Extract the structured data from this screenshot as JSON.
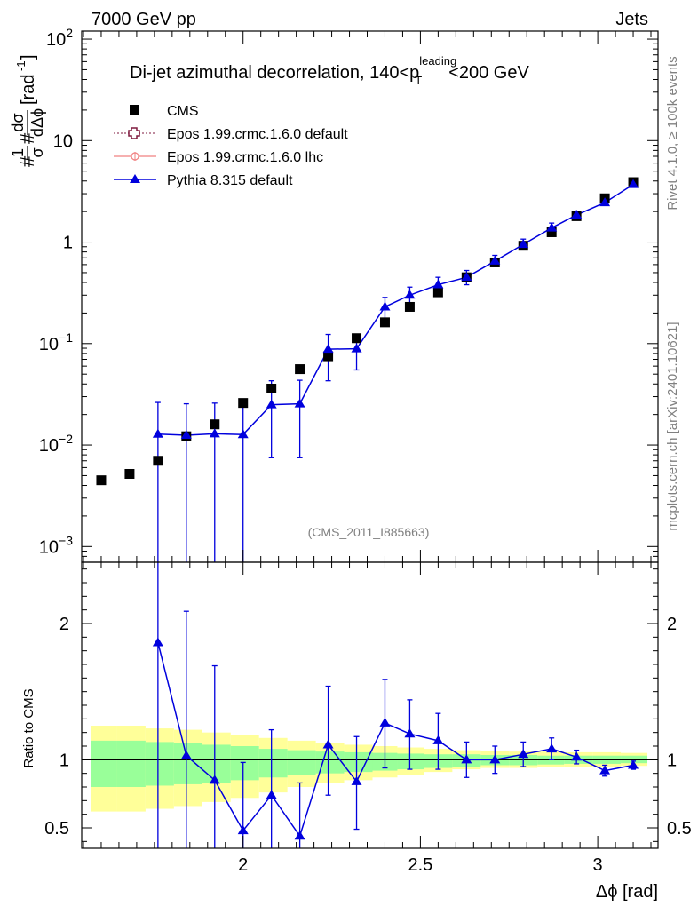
{
  "header": {
    "left": "7000 GeV pp",
    "right": "Jets"
  },
  "side_labels": {
    "rivet": "Rivet 4.1.0, ≥ 100k events",
    "mcplots": "mcplots.cern.ch [arXiv:2401.10621]"
  },
  "chart_data": [
    {
      "type": "scatter",
      "panel": "main",
      "title_main": "Di-jet azimuthal decorrelation, 140<p",
      "title_sup": "leading",
      "title_sub": "T",
      "title_tail": "<200 GeV",
      "ylabel": "#1/σ #dσ/dΔϕ [rad⁻¹]",
      "ylabel_prefix": "#",
      "ylabel_frac1_num": "1",
      "ylabel_frac1_den": "σ",
      "ylabel_mid": "#",
      "ylabel_frac2_num": "dσ",
      "ylabel_frac2_den": "dΔϕ",
      "ylabel_unit": "[rad",
      "ylabel_unit_exp": "-1",
      "ylabel_unit_close": "]",
      "yscale": "log",
      "ylim": [
        0.0007,
        120
      ],
      "xlim": [
        1.545,
        3.17
      ],
      "y_ticks": [
        {
          "value": 0.001,
          "base": "10",
          "exp": "−3"
        },
        {
          "value": 0.01,
          "base": "10",
          "exp": "−2"
        },
        {
          "value": 0.1,
          "base": "10",
          "exp": "−1"
        },
        {
          "value": 1,
          "base": "1",
          "exp": ""
        },
        {
          "value": 10,
          "base": "10",
          "exp": ""
        },
        {
          "value": 100,
          "base": "10",
          "exp": "2"
        }
      ],
      "analysis_label": "(CMS_2011_I885663)",
      "legend": [
        {
          "name": "CMS",
          "marker": "square",
          "color": "#000000"
        },
        {
          "name": "Epos 1.99.crmc.1.6.0 default",
          "marker": "open-cross",
          "color": "#7f1a3f"
        },
        {
          "name": "Epos 1.99.crmc.1.6.0 lhc",
          "marker": "circle-cross",
          "color": "#f08080"
        },
        {
          "name": "Pythia 8.315 default",
          "marker": "triangle",
          "color": "#0000dd"
        }
      ],
      "cms_x": [
        1.6,
        1.68,
        1.76,
        1.84,
        1.92,
        2.0,
        2.08,
        2.16,
        2.24,
        2.32,
        2.4,
        2.47,
        2.55,
        2.63,
        2.71,
        2.79,
        2.87,
        2.94,
        3.02,
        3.1
      ],
      "cms_y": [
        0.0045,
        0.0052,
        0.007,
        0.0122,
        0.016,
        0.026,
        0.036,
        0.056,
        0.075,
        0.113,
        0.162,
        0.23,
        0.32,
        0.45,
        0.63,
        0.92,
        1.25,
        1.8,
        2.7,
        3.9
      ],
      "pythia_x": [
        1.76,
        1.84,
        1.92,
        2.0,
        2.08,
        2.16,
        2.24,
        2.32,
        2.4,
        2.47,
        2.55,
        2.63,
        2.71,
        2.79,
        2.87,
        2.94,
        3.02,
        3.1
      ],
      "pythia_y": [
        0.0128,
        0.0125,
        0.0129,
        0.0127,
        0.025,
        0.0255,
        0.088,
        0.089,
        0.23,
        0.3,
        0.38,
        0.45,
        0.65,
        0.95,
        1.38,
        1.85,
        2.45,
        3.7
      ],
      "pythia_yerr_lo": [
        0.0128,
        0.0125,
        0.0129,
        0.0127,
        0.0175,
        0.018,
        0.045,
        0.034,
        0.06,
        0.07,
        0.07,
        0.07,
        0.07,
        0.1,
        0.12,
        0.1,
        0.1,
        0.15
      ],
      "pythia_yerr_hi": [
        0.0135,
        0.013,
        0.013,
        0.0133,
        0.018,
        0.018,
        0.035,
        0.028,
        0.055,
        0.06,
        0.07,
        0.075,
        0.09,
        0.12,
        0.16,
        0.12,
        0.12,
        0.2
      ]
    },
    {
      "type": "line",
      "panel": "ratio",
      "ylabel": "Ratio to CMS",
      "xlabel": "Δϕ [rad]",
      "ylim": [
        0.35,
        2.45
      ],
      "xlim": [
        1.545,
        3.17
      ],
      "x_ticks": [
        {
          "value": 2,
          "label": "2"
        },
        {
          "value": 2.5,
          "label": "2.5"
        },
        {
          "value": 3,
          "label": "3"
        }
      ],
      "y_ticks": [
        {
          "value": 0.5,
          "label": "0.5"
        },
        {
          "value": 1,
          "label": "1"
        },
        {
          "value": 2,
          "label": "2"
        }
      ],
      "band_edges": [
        1.57,
        1.645,
        1.725,
        1.805,
        1.885,
        1.965,
        2.045,
        2.125,
        2.205,
        2.285,
        2.365,
        2.435,
        2.51,
        2.59,
        2.67,
        2.75,
        2.83,
        2.905,
        2.985,
        3.065,
        3.14
      ],
      "band_stat_lo": [
        0.8,
        0.8,
        0.81,
        0.82,
        0.83,
        0.85,
        0.87,
        0.89,
        0.9,
        0.91,
        0.92,
        0.93,
        0.94,
        0.95,
        0.96,
        0.96,
        0.965,
        0.97,
        0.97,
        0.975
      ],
      "band_stat_hi": [
        1.14,
        1.14,
        1.13,
        1.12,
        1.11,
        1.1,
        1.08,
        1.07,
        1.06,
        1.055,
        1.05,
        1.045,
        1.04,
        1.04,
        1.035,
        1.035,
        1.03,
        1.03,
        1.03,
        1.03
      ],
      "band_tot_lo": [
        0.62,
        0.62,
        0.64,
        0.66,
        0.69,
        0.72,
        0.76,
        0.8,
        0.83,
        0.85,
        0.87,
        0.89,
        0.91,
        0.93,
        0.94,
        0.94,
        0.945,
        0.95,
        0.95,
        0.955
      ],
      "band_tot_hi": [
        1.25,
        1.25,
        1.23,
        1.22,
        1.2,
        1.18,
        1.16,
        1.14,
        1.12,
        1.11,
        1.1,
        1.09,
        1.08,
        1.07,
        1.065,
        1.06,
        1.06,
        1.055,
        1.055,
        1.05
      ],
      "pythia_x": [
        1.76,
        1.84,
        1.92,
        2.0,
        2.08,
        2.16,
        2.24,
        2.32,
        2.4,
        2.47,
        2.55,
        2.63,
        2.71,
        2.79,
        2.87,
        2.94,
        3.02,
        3.1
      ],
      "pythia_y": [
        1.86,
        1.03,
        0.85,
        0.48,
        0.74,
        0.44,
        1.11,
        0.84,
        1.27,
        1.19,
        1.14,
        1.0,
        1.0,
        1.04,
        1.08,
        1.02,
        0.92,
        0.96
      ],
      "pythia_yerr_lo": [
        1.86,
        1.03,
        0.85,
        0.48,
        0.49,
        0.31,
        0.37,
        0.35,
        0.33,
        0.26,
        0.21,
        0.13,
        0.1,
        0.09,
        0.08,
        0.05,
        0.04,
        0.03
      ],
      "pythia_yerr_hi": [
        1.86,
        1.06,
        0.84,
        0.5,
        0.48,
        0.39,
        0.43,
        0.33,
        0.32,
        0.25,
        0.2,
        0.13,
        0.1,
        0.09,
        0.08,
        0.05,
        0.04,
        0.03
      ]
    }
  ]
}
